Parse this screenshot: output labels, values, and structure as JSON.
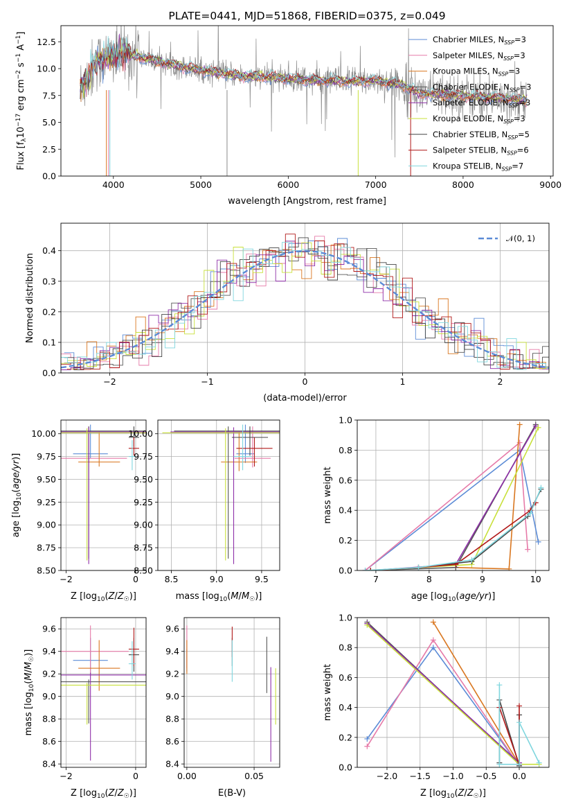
{
  "colors": {
    "Chabrier MILES": "#5b8bd6",
    "Salpeter MILES": "#e67aa8",
    "Kroupa MILES": "#d9761f",
    "Chabrier ELODIE": "#555555",
    "Salpeter ELODIE": "#8e2fa8",
    "Kroupa ELODIE": "#c8e03a",
    "Chabrier STELIB": "#444444",
    "Salpeter STELIB": "#b01818",
    "Kroupa STELIB": "#7fd6de"
  },
  "chart_data": [
    {
      "id": "spectrum",
      "type": "line",
      "title": "PLATE=0441, MJD=51868, FIBERID=0375, z=0.049",
      "xlabel": "wavelength [Angstrom, rest frame]",
      "ylabel": "Flux [f_λ 10^-17 erg cm^-2 s^-1 A^-1]",
      "xlim": [
        3400,
        9030
      ],
      "ylim": [
        0,
        14
      ],
      "xticks": [
        4000,
        5000,
        6000,
        7000,
        8000,
        9000
      ],
      "yticks": [
        0.0,
        2.5,
        5.0,
        7.5,
        10.0,
        12.5
      ],
      "grid": false,
      "legend_position": "top-right",
      "legend": [
        {
          "label": "Chabrier MILES",
          "nssp": "3"
        },
        {
          "label": "Salpeter MILES",
          "nssp": "3"
        },
        {
          "label": "Kroupa MILES",
          "nssp": "3"
        },
        {
          "label": "Chabrier ELODIE",
          "nssp": "3"
        },
        {
          "label": "Salpeter ELODIE",
          "nssp": "3"
        },
        {
          "label": "Kroupa ELODIE",
          "nssp": "3"
        },
        {
          "label": "Chabrier STELIB",
          "nssp": "5"
        },
        {
          "label": "Salpeter STELIB",
          "nssp": "6"
        },
        {
          "label": "Kroupa STELIB",
          "nssp": "7"
        }
      ],
      "data_envelope": {
        "x": [
          3620,
          3700,
          3800,
          3900,
          4000,
          4100,
          4300,
          4600,
          4900,
          5200,
          5500,
          5800,
          6100,
          6400,
          6700,
          7000,
          7300,
          7500,
          7800,
          8100,
          8400,
          8700
        ],
        "y": [
          8.3,
          9.0,
          10.6,
          10.9,
          11.2,
          11.5,
          11.1,
          10.5,
          10.0,
          9.6,
          9.3,
          9.2,
          9.0,
          8.9,
          8.8,
          8.9,
          8.5,
          7.7,
          7.6,
          7.4,
          7.3,
          7.1
        ]
      }
    },
    {
      "id": "residuals",
      "type": "step",
      "xlabel": "(data-model)/error",
      "ylabel": "Normed distribution",
      "xlim": [
        -2.5,
        2.5
      ],
      "ylim": [
        0,
        0.49
      ],
      "xticks": [
        -2,
        -1,
        0,
        1,
        2
      ],
      "yticks": [
        0.0,
        0.1,
        0.2,
        0.3,
        0.4
      ],
      "grid": true,
      "legend_position": "top-right",
      "gaussian_label": "𝒩(0, 1)",
      "gaussian_color": "#5b8bd6"
    },
    {
      "id": "age-vs-Z",
      "type": "errorbar",
      "xlabel": "Z [log10(Z/Z☉)]",
      "ylabel": "age [log10(age/yr)]",
      "xlim": [
        -2.15,
        0.3
      ],
      "ylim": [
        8.5,
        10.15
      ],
      "xticks": [
        -2,
        0
      ],
      "yticks": [
        8.5,
        8.75,
        9.0,
        9.25,
        9.5,
        9.75,
        10.0
      ],
      "grid": true,
      "points": [
        {
          "series": "Chabrier MILES",
          "x": -1.3,
          "y": 9.78,
          "xerr": 0.5,
          "yerr": [
            0.05,
            0.32
          ]
        },
        {
          "series": "Salpeter MILES",
          "x": -1.35,
          "y": 9.73,
          "xerr": 1.1,
          "yerr": [
            0.05,
            0.35
          ]
        },
        {
          "series": "Kroupa MILES",
          "x": -1.05,
          "y": 9.69,
          "xerr": 0.6,
          "yerr": [
            0.05,
            0.33
          ]
        },
        {
          "series": "Chabrier ELODIE",
          "x": -1.35,
          "y": 10.03,
          "xerr": 1.6,
          "yerr": [
            1.4,
            0.05
          ]
        },
        {
          "series": "Salpeter ELODIE",
          "x": -1.35,
          "y": 10.02,
          "xerr": 1.7,
          "yerr": [
            1.45,
            0.05
          ]
        },
        {
          "series": "Kroupa ELODIE",
          "x": -1.4,
          "y": 10.01,
          "xerr": 1.9,
          "yerr": [
            1.4,
            0.05
          ]
        },
        {
          "series": "Chabrier STELIB",
          "x": -0.05,
          "y": 9.96,
          "xerr": 0.15,
          "yerr": [
            0.1,
            0.12
          ]
        },
        {
          "series": "Salpeter STELIB",
          "x": -0.05,
          "y": 9.84,
          "xerr": 0.15,
          "yerr": [
            0.08,
            0.12
          ]
        },
        {
          "series": "Kroupa STELIB",
          "x": -0.1,
          "y": 9.75,
          "xerr": 0.1,
          "yerr": [
            0.15,
            0.18
          ]
        }
      ]
    },
    {
      "id": "age-vs-mass",
      "type": "errorbar",
      "xlabel": "mass [log10(M/M☉)]",
      "ylabel": "",
      "xlim": [
        8.35,
        9.7
      ],
      "ylim": [
        8.5,
        10.15
      ],
      "xticks": [
        8.5,
        9.0,
        9.5
      ],
      "yticks": [
        8.5,
        8.75,
        9.0,
        9.25,
        9.5,
        9.75,
        10.0
      ],
      "grid": true,
      "points": [
        {
          "series": "Chabrier MILES",
          "x": 9.32,
          "y": 9.78,
          "xerr": 0.1,
          "yerr": [
            0.1,
            0.32
          ]
        },
        {
          "series": "Salpeter MILES",
          "x": 9.4,
          "y": 9.73,
          "xerr": 0.2,
          "yerr": [
            0.1,
            0.35
          ]
        },
        {
          "series": "Kroupa MILES",
          "x": 9.25,
          "y": 9.69,
          "xerr": 0.2,
          "yerr": [
            0.1,
            0.33
          ]
        },
        {
          "series": "Chabrier ELODIE",
          "x": 9.13,
          "y": 10.03,
          "xerr": 0.6,
          "yerr": [
            1.4,
            0.05
          ]
        },
        {
          "series": "Salpeter ELODIE",
          "x": 9.19,
          "y": 10.02,
          "xerr": 0.7,
          "yerr": [
            1.45,
            0.05
          ]
        },
        {
          "series": "Kroupa ELODIE",
          "x": 9.1,
          "y": 10.01,
          "xerr": 0.7,
          "yerr": [
            1.4,
            0.05
          ]
        },
        {
          "series": "Chabrier STELIB",
          "x": 9.37,
          "y": 9.96,
          "xerr": 0.2,
          "yerr": [
            0.2,
            0.12
          ]
        },
        {
          "series": "Salpeter STELIB",
          "x": 9.42,
          "y": 9.84,
          "xerr": 0.2,
          "yerr": [
            0.2,
            0.12
          ]
        },
        {
          "series": "Kroupa STELIB",
          "x": 9.29,
          "y": 9.75,
          "xerr": 0.1,
          "yerr": [
            0.15,
            0.35
          ]
        }
      ]
    },
    {
      "id": "massweight-vs-age",
      "type": "line",
      "xlabel": "age [log10(age/yr)]",
      "ylabel": "mass weight",
      "xlim": [
        6.65,
        10.25
      ],
      "ylim": [
        0,
        1
      ],
      "xticks": [
        7,
        8,
        9,
        10
      ],
      "yticks": [
        0.0,
        0.2,
        0.4,
        0.6,
        0.8,
        1.0
      ],
      "grid": true,
      "series": [
        {
          "name": "Chabrier MILES",
          "x": [
            6.8,
            9.7,
            10.05
          ],
          "y": [
            0.0,
            0.8,
            0.19
          ]
        },
        {
          "name": "Salpeter MILES",
          "x": [
            6.8,
            9.7,
            9.85
          ],
          "y": [
            0.0,
            0.85,
            0.14
          ]
        },
        {
          "name": "Kroupa MILES",
          "x": [
            8.5,
            9.5,
            9.7
          ],
          "y": [
            0.02,
            0.01,
            0.97
          ]
        },
        {
          "name": "Chabrier ELODIE",
          "x": [
            6.9,
            8.5,
            10.0
          ],
          "y": [
            0.0,
            0.02,
            0.97
          ]
        },
        {
          "name": "Salpeter ELODIE",
          "x": [
            6.9,
            8.5,
            10.0
          ],
          "y": [
            0.0,
            0.04,
            0.96
          ]
        },
        {
          "name": "Kroupa ELODIE",
          "x": [
            6.9,
            8.8,
            10.05
          ],
          "y": [
            0.0,
            0.04,
            0.95
          ]
        },
        {
          "name": "Chabrier STELIB",
          "x": [
            6.9,
            7.8,
            8.8,
            9.85,
            10.1
          ],
          "y": [
            0.0,
            0.02,
            0.06,
            0.36,
            0.54
          ]
        },
        {
          "name": "Salpeter STELIB",
          "x": [
            6.9,
            7.8,
            8.5,
            9.9,
            10.0
          ],
          "y": [
            0.0,
            0.02,
            0.04,
            0.4,
            0.45
          ]
        },
        {
          "name": "Kroupa STELIB",
          "x": [
            6.8,
            7.8,
            8.8,
            9.9,
            10.1
          ],
          "y": [
            0.0,
            0.02,
            0.07,
            0.38,
            0.55
          ]
        }
      ]
    },
    {
      "id": "mass-vs-Z",
      "type": "errorbar",
      "xlabel": "Z [log10(Z/Z☉)]",
      "ylabel": "mass [log10(M/M☉)]",
      "xlim": [
        -2.15,
        0.3
      ],
      "ylim": [
        8.37,
        9.7
      ],
      "xticks": [
        -2,
        0
      ],
      "yticks": [
        8.4,
        8.6,
        8.8,
        9.0,
        9.2,
        9.4,
        9.6
      ],
      "grid": true,
      "points": [
        {
          "series": "Chabrier MILES",
          "x": -1.3,
          "y": 9.32,
          "xerr": 0.5,
          "yerr": [
            0.12,
            0.2
          ]
        },
        {
          "series": "Salpeter MILES",
          "x": -1.3,
          "y": 9.4,
          "xerr": 1.1,
          "yerr": [
            0.2,
            0.23
          ]
        },
        {
          "series": "Kroupa MILES",
          "x": -1.05,
          "y": 9.25,
          "xerr": 0.6,
          "yerr": [
            0.2,
            0.25
          ]
        },
        {
          "series": "Chabrier ELODIE",
          "x": -1.35,
          "y": 9.13,
          "xerr": 2.2,
          "yerr": [
            0.37,
            0.02
          ]
        },
        {
          "series": "Salpeter ELODIE",
          "x": -1.3,
          "y": 9.19,
          "xerr": 1.7,
          "yerr": [
            0.76,
            0.02
          ]
        },
        {
          "series": "Kroupa ELODIE",
          "x": -1.4,
          "y": 9.1,
          "xerr": 2.1,
          "yerr": [
            0.35,
            0.02
          ]
        },
        {
          "series": "Chabrier STELIB",
          "x": -0.05,
          "y": 9.37,
          "xerr": 0.15,
          "yerr": [
            0.15,
            0.15
          ]
        },
        {
          "series": "Salpeter STELIB",
          "x": -0.05,
          "y": 9.42,
          "xerr": 0.15,
          "yerr": [
            0.15,
            0.19
          ]
        },
        {
          "series": "Kroupa STELIB",
          "x": -0.1,
          "y": 9.29,
          "xerr": 0.1,
          "yerr": [
            0.14,
            0.2
          ]
        }
      ]
    },
    {
      "id": "mass-vs-ebv",
      "type": "errorbar",
      "xlabel": "E(B-V)",
      "ylabel": "",
      "xlim": [
        -0.002,
        0.069
      ],
      "ylim": [
        8.37,
        9.7
      ],
      "xticks": [
        0.0,
        0.05
      ],
      "yticks": [
        8.4,
        8.6,
        8.8,
        9.0,
        9.2,
        9.4,
        9.6
      ],
      "grid": true,
      "points": [
        {
          "series": "Chabrier MILES",
          "x": 0.0,
          "y": 9.32,
          "xerr": 0,
          "yerr": [
            0.1,
            0.1
          ]
        },
        {
          "series": "Salpeter MILES",
          "x": 0.0,
          "y": 9.45,
          "xerr": 0,
          "yerr": [
            0.2,
            0.18
          ]
        },
        {
          "series": "Kroupa MILES",
          "x": 0.0,
          "y": 9.35,
          "xerr": 0,
          "yerr": [
            0.15,
            0.15
          ]
        },
        {
          "series": "Chabrier ELODIE",
          "x": 0.0594,
          "y": 9.13,
          "xerr": 0,
          "yerr": [
            0.1,
            0.4
          ]
        },
        {
          "series": "Salpeter ELODIE",
          "x": 0.0624,
          "y": 8.9,
          "xerr": 0,
          "yerr": [
            0.48,
            0.36
          ]
        },
        {
          "series": "Kroupa ELODIE",
          "x": 0.066,
          "y": 9.0,
          "xerr": 0,
          "yerr": [
            0.25,
            0.25
          ]
        },
        {
          "series": "Chabrier STELIB",
          "x": 0.0337,
          "y": 9.37,
          "xerr": 0,
          "yerr": [
            0.1,
            0.15
          ]
        },
        {
          "series": "Salpeter STELIB",
          "x": 0.0337,
          "y": 9.45,
          "xerr": 0,
          "yerr": [
            0.1,
            0.17
          ]
        },
        {
          "series": "Kroupa STELIB",
          "x": 0.0337,
          "y": 9.3,
          "xerr": 0,
          "yerr": [
            0.17,
            0.2
          ]
        }
      ]
    },
    {
      "id": "massweight-vs-Z",
      "type": "line",
      "xlabel": "Z [log10(Z/Z☉)]",
      "ylabel": "mass weight",
      "xlim": [
        -2.45,
        0.45
      ],
      "ylim": [
        0,
        1
      ],
      "xticks": [
        -2.0,
        -1.5,
        -1.0,
        -0.5,
        0.0
      ],
      "yticks": [
        0.0,
        0.2,
        0.4,
        0.6,
        0.8,
        1.0
      ],
      "grid": true,
      "series": [
        {
          "name": "Chabrier MILES",
          "x": [
            -2.3,
            -1.3,
            0.0
          ],
          "y": [
            0.19,
            0.8,
            0.01
          ]
        },
        {
          "name": "Salpeter MILES",
          "x": [
            -2.3,
            -1.3,
            0.0
          ],
          "y": [
            0.14,
            0.85,
            0.01
          ]
        },
        {
          "name": "Kroupa MILES",
          "x": [
            -1.3,
            0.0
          ],
          "y": [
            0.97,
            0.02
          ]
        },
        {
          "name": "Chabrier ELODIE",
          "x": [
            -2.3,
            0.0
          ],
          "y": [
            0.97,
            0.02
          ]
        },
        {
          "name": "Salpeter ELODIE",
          "x": [
            -2.3,
            0.0
          ],
          "y": [
            0.96,
            0.03
          ]
        },
        {
          "name": "Kroupa ELODIE",
          "x": [
            -2.3,
            0.0,
            0.3
          ],
          "y": [
            0.95,
            0.02,
            0.02
          ]
        },
        {
          "name": "Chabrier STELIB",
          "x": [
            -0.3,
            -0.3,
            0.0,
            0.0
          ],
          "y": [
            0.03,
            0.45,
            0.01,
            0.35
          ]
        },
        {
          "name": "Salpeter STELIB",
          "x": [
            -0.3,
            0.0,
            0.0
          ],
          "y": [
            0.4,
            0.02,
            0.41
          ]
        },
        {
          "name": "Kroupa STELIB",
          "x": [
            -0.3,
            -0.3,
            0.0,
            0.0,
            0.3
          ],
          "y": [
            0.55,
            0.02,
            0.02,
            0.3,
            0.03
          ]
        }
      ]
    }
  ]
}
